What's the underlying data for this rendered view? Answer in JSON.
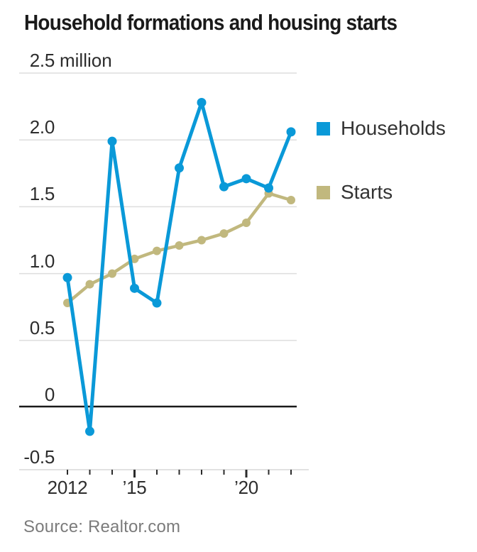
{
  "title": "Household formations and housing starts",
  "source": "Source: Realtor.com",
  "legend": [
    {
      "name": "households",
      "label": "Households",
      "color": "#0a99d8"
    },
    {
      "name": "starts",
      "label": "Starts",
      "color": "#c1b87e"
    }
  ],
  "colors": {
    "households_line": "#0a99d8",
    "starts_line": "#c1b87e",
    "gridline": "#dedede",
    "zero_line": "#1a1a1a",
    "axis_line": "#d9d9d9",
    "tick_mark": "#2b2b2b"
  },
  "chart_data": {
    "type": "line",
    "x": [
      2012,
      2013,
      2014,
      2015,
      2016,
      2017,
      2018,
      2019,
      2020,
      2021,
      2022
    ],
    "series": [
      {
        "name": "Households",
        "color": "#0a99d8",
        "values": [
          0.97,
          -0.18,
          1.99,
          0.89,
          0.78,
          1.79,
          2.28,
          1.65,
          1.71,
          1.64,
          2.06
        ]
      },
      {
        "name": "Starts",
        "color": "#c1b87e",
        "values": [
          0.78,
          0.92,
          1.0,
          1.11,
          1.17,
          1.21,
          1.25,
          1.3,
          1.38,
          1.6,
          1.55
        ]
      }
    ],
    "ylabel": "million",
    "ylim": [
      -0.5,
      2.5
    ],
    "y_ticks": [
      {
        "value": 2.5,
        "label": "2.5",
        "unit": "million"
      },
      {
        "value": 2.0,
        "label": "2.0"
      },
      {
        "value": 1.5,
        "label": "1.5"
      },
      {
        "value": 1.0,
        "label": "1.0"
      },
      {
        "value": 0.5,
        "label": "0.5"
      },
      {
        "value": 0,
        "label": "0"
      },
      {
        "value": -0.5,
        "label": "-0.5"
      }
    ],
    "x_tick_labels": [
      {
        "year": 2012,
        "label": "2012"
      },
      {
        "year": 2015,
        "label": "’15"
      },
      {
        "year": 2020,
        "label": "’20"
      }
    ],
    "major_x_ticks": [
      2015,
      2020
    ],
    "grid": "horizontal",
    "legend_position": "right"
  }
}
